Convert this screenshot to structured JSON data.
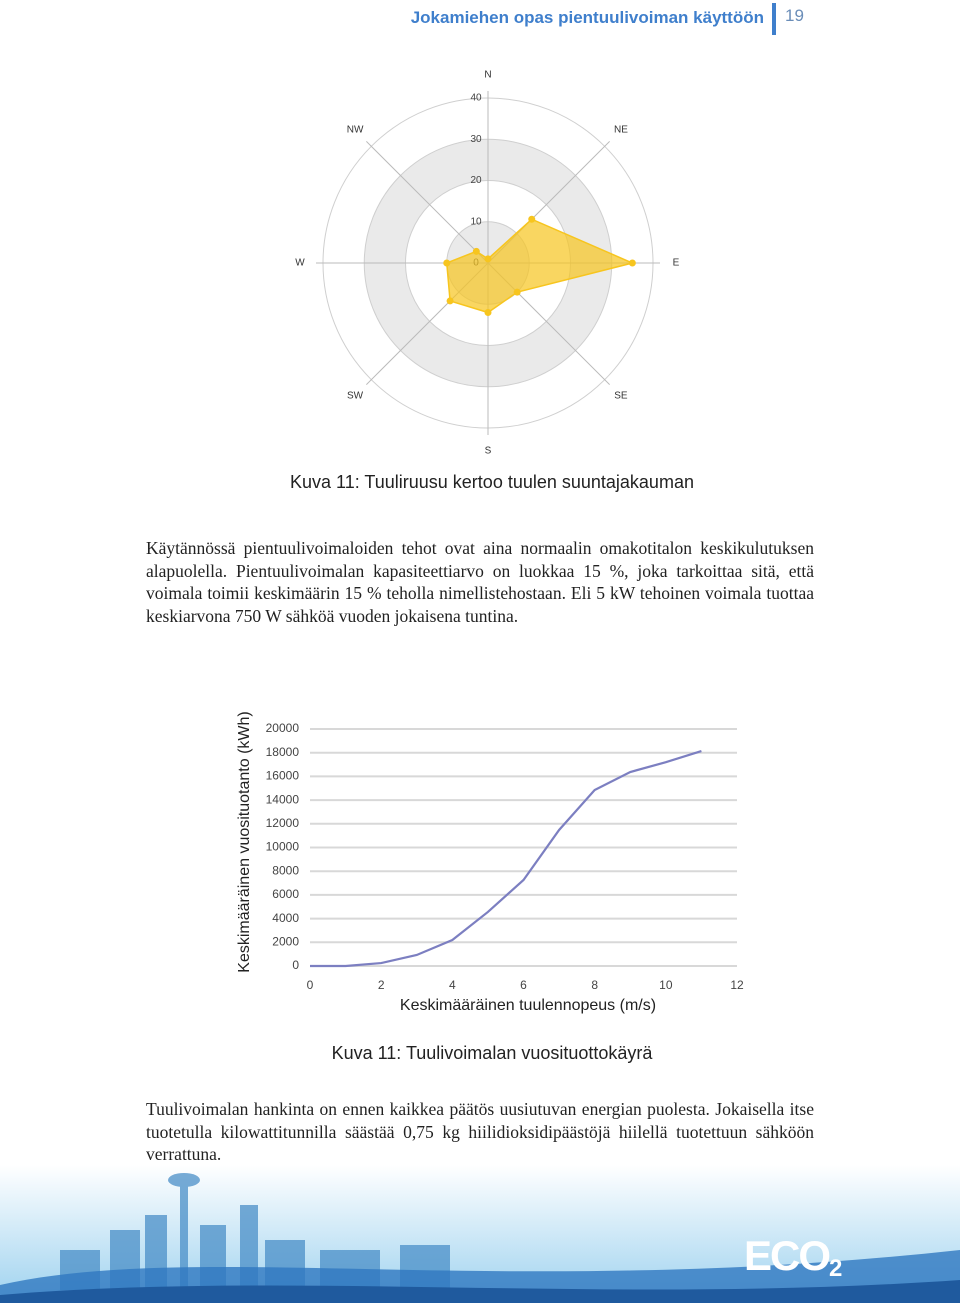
{
  "header": {
    "title": "Jokamiehen opas pientuulivoiman käyttöön",
    "page": "19"
  },
  "chart_data": [
    {
      "type": "radar",
      "categories": [
        "N",
        "NE",
        "E",
        "SE",
        "S",
        "SW",
        "W",
        "NW"
      ],
      "values": [
        1,
        15,
        35,
        10,
        12,
        13,
        10,
        4
      ],
      "color": "#f7c51e",
      "rlim": [
        0,
        40
      ],
      "rticks": [
        0,
        10,
        20,
        30,
        40
      ]
    },
    {
      "type": "line",
      "x": [
        0,
        1,
        2,
        3,
        4,
        5,
        6,
        7,
        8,
        9,
        10,
        11
      ],
      "series": [
        {
          "color": "#7c7fc1",
          "values": [
            0,
            0,
            250,
            930,
            2190,
            4560,
            7260,
            11480,
            14850,
            16370,
            17200,
            18140
          ]
        }
      ],
      "xlabel": "Keskimääräinen tuulennopeus (m/s)",
      "ylabel": "Keskimääräinen vuosituotanto (kWh)",
      "xlim": [
        0,
        12
      ],
      "xticks": [
        0,
        2,
        4,
        6,
        8,
        10,
        12
      ],
      "ylim": [
        0,
        20000
      ],
      "yticks": [
        0,
        2000,
        4000,
        6000,
        8000,
        10000,
        12000,
        14000,
        16000,
        18000,
        20000
      ],
      "grid": true
    }
  ],
  "captions": [
    "Kuva 11: Tuuliruusu kertoo tuulen suuntajakauman",
    "Kuva 11: Tuulivoimalan vuosituottokäyrä"
  ],
  "paragraphs": [
    "Käytännössä pientuulivoimaloiden tehot ovat aina normaalin omakotitalon keskikulutuksen alapuolella. Pientuulivoimalan kapasiteettiarvo on luokkaa 15 %, joka tarkoittaa sitä, että voimala toimii keskimäärin 15 % teholla nimellistehostaan. Eli 5 kW tehoinen voimala tuottaa keskiarvona 750 W sähköä vuoden jokaisena tuntina.",
    "Tuulivoimalan hankinta on ennen kaikkea päätös uusiutuvan energian puolesta. Jokaisella itse tuotetulla kilowattitunnilla säästää 0,75 kg hiilidioksidipäästöjä hiilellä tuotettuun sähköön verrattuna."
  ],
  "logo": {
    "text": "ECO",
    "sub": "2"
  }
}
